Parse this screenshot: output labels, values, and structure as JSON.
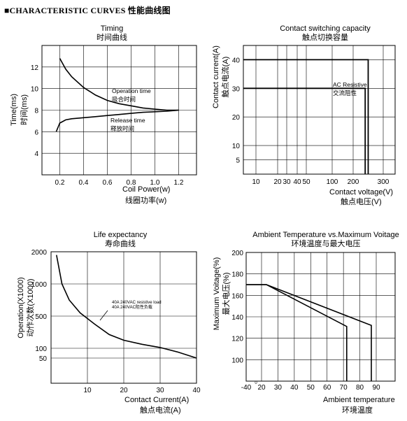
{
  "header": "■CHARACTERISTIC CURVES 性能曲线图",
  "chart_data": [
    {
      "id": "timing",
      "type": "line",
      "title": "Timing",
      "subtitle": "时间曲线",
      "xlabel": "Coil Power(w)",
      "xlabel_cn": "线圈功率(w)",
      "ylabel": "Time(ms)",
      "ylabel_cn": "时间(ms)",
      "xlim": [
        0.05,
        1.35
      ],
      "ylim": [
        2,
        14
      ],
      "xticks": [
        0.2,
        0.4,
        0.6,
        0.8,
        1.0,
        1.2
      ],
      "xtick_labels": [
        "0.2",
        "0.4",
        "0.6",
        "0.8",
        "1.0",
        "1.2"
      ],
      "yticks": [
        4,
        6,
        8,
        10,
        12
      ],
      "grid": true,
      "series": [
        {
          "name": "Operation time",
          "name_cn": "吸合时间",
          "x": [
            0.2,
            0.25,
            0.3,
            0.4,
            0.5,
            0.6,
            0.7,
            0.8,
            0.9,
            1.0,
            1.1,
            1.2
          ],
          "y": [
            12.8,
            11.8,
            11.1,
            10.1,
            9.4,
            8.9,
            8.6,
            8.4,
            8.2,
            8.1,
            8.0,
            8.0
          ]
        },
        {
          "name": "Release time",
          "name_cn": "释放时间",
          "x": [
            0.17,
            0.2,
            0.25,
            0.3,
            0.4,
            0.5,
            0.6,
            0.7,
            0.8,
            0.9,
            1.0,
            1.1,
            1.2
          ],
          "y": [
            6.0,
            6.8,
            7.1,
            7.2,
            7.3,
            7.4,
            7.5,
            7.6,
            7.7,
            7.8,
            7.85,
            7.9,
            8.0
          ]
        }
      ]
    },
    {
      "id": "contact-capacity",
      "type": "line",
      "title": "Contact switching capacity",
      "subtitle": "触点切换容量",
      "xlabel": "Contact voltage(V)",
      "xlabel_cn": "触点电压(V)",
      "ylabel": "Contact current(A)",
      "ylabel_cn": "触点电流(A)",
      "xlim": [
        0,
        320
      ],
      "ylim": [
        0,
        45
      ],
      "xticks": [
        10,
        20,
        30,
        40,
        50,
        100,
        200,
        300
      ],
      "xtick_labels": [
        "10",
        "20",
        "30",
        "40",
        "50",
        "100",
        "200",
        "300"
      ],
      "yticks": [
        5,
        10,
        20,
        30,
        40
      ],
      "grid": true,
      "series": [
        {
          "name": "AC Resistive",
          "name_cn": "交流阻性",
          "x": [
            0,
            250,
            250
          ],
          "y": [
            40,
            40,
            0
          ]
        },
        {
          "name": "",
          "x": [
            0,
            240,
            240
          ],
          "y": [
            30,
            30,
            0
          ]
        }
      ]
    },
    {
      "id": "life-expectancy",
      "type": "line",
      "title": "Life expectancy",
      "subtitle": "寿命曲线",
      "xlabel": "Contact Current(A)",
      "xlabel_cn": "触点电流(A)",
      "ylabel": "Operation(X1000)",
      "ylabel_cn": "动作次数(X1000)",
      "xlim": [
        0,
        40
      ],
      "yticks": [
        50,
        100,
        500,
        1000,
        2000
      ],
      "xticks": [
        10,
        20,
        30,
        40
      ],
      "grid": true,
      "series": [
        {
          "name": "40A 240VAC resistive load",
          "name_cn": "40A 240VAC阻性负载",
          "x": [
            1.5,
            3,
            5,
            8,
            12,
            16,
            20,
            25,
            30,
            35,
            40
          ],
          "y": [
            1900,
            1000,
            750,
            550,
            400,
            270,
            200,
            150,
            110,
            80,
            50
          ]
        }
      ]
    },
    {
      "id": "ambient-temperature",
      "type": "line",
      "title": "Ambient Temperature vs.Maximum Voitage",
      "subtitle": "环境温度与最大电压",
      "xlabel": "Ambient temperature",
      "xlabel_cn": "环境温度",
      "ylabel": "Maximum Voitage(%)",
      "ylabel_cn": "最大电压(%)",
      "xlim": [
        -40,
        95
      ],
      "ylim": [
        80,
        200
      ],
      "xticks": [
        -40,
        0,
        20,
        30,
        40,
        50,
        60,
        70,
        80,
        90
      ],
      "xtick_labels": [
        "-40",
        "0",
        "20",
        "30",
        "40",
        "50",
        "60",
        "70",
        "80",
        "90"
      ],
      "yticks": [
        100,
        120,
        140,
        160,
        180,
        200
      ],
      "grid": true,
      "series": [
        {
          "name": "",
          "x": [
            -40,
            23,
            72,
            72
          ],
          "y": [
            170,
            170,
            131,
            80
          ]
        },
        {
          "name": "",
          "x": [
            -40,
            23,
            87,
            87
          ],
          "y": [
            170,
            170,
            132,
            80
          ]
        }
      ]
    }
  ]
}
